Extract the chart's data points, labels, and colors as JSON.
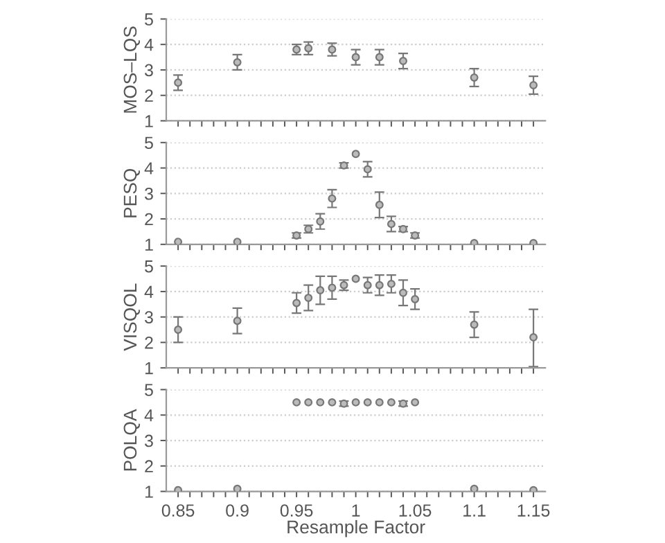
{
  "chart_data": [
    {
      "type": "scatter",
      "ylabel": "MOS–LQS",
      "x": [
        0.85,
        0.9,
        0.95,
        0.96,
        0.98,
        1.0,
        1.02,
        1.04,
        1.1,
        1.15
      ],
      "series": [
        {
          "color": "#777777",
          "values": [
            2.5,
            3.3,
            3.8,
            3.85,
            3.8,
            3.5,
            3.5,
            3.35,
            2.7,
            2.4
          ],
          "errors": [
            0.3,
            0.3,
            0.2,
            0.25,
            0.25,
            0.3,
            0.3,
            0.3,
            0.35,
            0.35
          ]
        }
      ],
      "xlim": [
        0.84,
        1.16
      ],
      "xticks": [
        {
          "value": 0.85,
          "label": null
        },
        {
          "value": 0.86,
          "label": null
        },
        {
          "value": 0.87,
          "label": null
        },
        {
          "value": 0.88,
          "label": null
        },
        {
          "value": 0.89,
          "label": null
        },
        {
          "value": 0.9,
          "label": null
        },
        {
          "value": 0.91,
          "label": null
        },
        {
          "value": 0.92,
          "label": null
        },
        {
          "value": 0.93,
          "label": null
        },
        {
          "value": 0.94,
          "label": null
        },
        {
          "value": 0.95,
          "label": null
        },
        {
          "value": 0.96,
          "label": null
        },
        {
          "value": 0.97,
          "label": null
        },
        {
          "value": 0.98,
          "label": null
        },
        {
          "value": 0.99,
          "label": null
        },
        {
          "value": 1.0,
          "label": null
        },
        {
          "value": 1.01,
          "label": null
        },
        {
          "value": 1.02,
          "label": null
        },
        {
          "value": 1.03,
          "label": null
        },
        {
          "value": 1.04,
          "label": null
        },
        {
          "value": 1.05,
          "label": null
        },
        {
          "value": 1.06,
          "label": null
        },
        {
          "value": 1.07,
          "label": null
        },
        {
          "value": 1.08,
          "label": null
        },
        {
          "value": 1.09,
          "label": null
        },
        {
          "value": 1.1,
          "label": null
        },
        {
          "value": 1.11,
          "label": null
        },
        {
          "value": 1.12,
          "label": null
        },
        {
          "value": 1.13,
          "label": null
        },
        {
          "value": 1.14,
          "label": null
        },
        {
          "value": 1.15,
          "label": null
        }
      ],
      "ylim": [
        1,
        5
      ],
      "yticks": [
        1,
        2,
        3,
        4,
        5
      ],
      "grid": "y",
      "marker": "circle",
      "tick_labels": "y"
    },
    {
      "type": "scatter",
      "ylabel": "PESQ",
      "x": [
        0.85,
        0.9,
        0.95,
        0.96,
        0.97,
        0.98,
        0.99,
        1.0,
        1.01,
        1.02,
        1.03,
        1.04,
        1.05,
        1.1,
        1.15
      ],
      "series": [
        {
          "color": "#777777",
          "values": [
            1.1,
            1.1,
            1.35,
            1.6,
            1.9,
            2.8,
            4.1,
            4.55,
            3.95,
            2.55,
            1.8,
            1.6,
            1.35,
            1.05,
            1.05
          ],
          "errors": [
            null,
            null,
            0.1,
            0.15,
            0.3,
            0.35,
            0.1,
            null,
            0.3,
            0.5,
            0.3,
            0.1,
            0.1,
            null,
            null
          ]
        }
      ],
      "xlim": [
        0.84,
        1.16
      ],
      "xticks": [
        {
          "value": 0.85,
          "label": null
        },
        {
          "value": 0.86,
          "label": null
        },
        {
          "value": 0.87,
          "label": null
        },
        {
          "value": 0.88,
          "label": null
        },
        {
          "value": 0.89,
          "label": null
        },
        {
          "value": 0.9,
          "label": null
        },
        {
          "value": 0.91,
          "label": null
        },
        {
          "value": 0.92,
          "label": null
        },
        {
          "value": 0.93,
          "label": null
        },
        {
          "value": 0.94,
          "label": null
        },
        {
          "value": 0.95,
          "label": null
        },
        {
          "value": 0.96,
          "label": null
        },
        {
          "value": 0.97,
          "label": null
        },
        {
          "value": 0.98,
          "label": null
        },
        {
          "value": 0.99,
          "label": null
        },
        {
          "value": 1.0,
          "label": null
        },
        {
          "value": 1.01,
          "label": null
        },
        {
          "value": 1.02,
          "label": null
        },
        {
          "value": 1.03,
          "label": null
        },
        {
          "value": 1.04,
          "label": null
        },
        {
          "value": 1.05,
          "label": null
        },
        {
          "value": 1.06,
          "label": null
        },
        {
          "value": 1.07,
          "label": null
        },
        {
          "value": 1.08,
          "label": null
        },
        {
          "value": 1.09,
          "label": null
        },
        {
          "value": 1.1,
          "label": null
        },
        {
          "value": 1.11,
          "label": null
        },
        {
          "value": 1.12,
          "label": null
        },
        {
          "value": 1.13,
          "label": null
        },
        {
          "value": 1.14,
          "label": null
        },
        {
          "value": 1.15,
          "label": null
        }
      ],
      "ylim": [
        1,
        5
      ],
      "yticks": [
        1,
        2,
        3,
        4,
        5
      ],
      "grid": "y",
      "marker": "circle",
      "tick_labels": "y"
    },
    {
      "type": "scatter",
      "ylabel": "VISQOL",
      "x": [
        0.85,
        0.9,
        0.95,
        0.96,
        0.97,
        0.98,
        0.99,
        1.0,
        1.01,
        1.02,
        1.03,
        1.04,
        1.05,
        1.1,
        1.15
      ],
      "series": [
        {
          "color": "#777777",
          "values": [
            2.5,
            2.85,
            3.55,
            3.75,
            4.05,
            4.15,
            4.25,
            4.5,
            4.25,
            4.25,
            4.3,
            3.95,
            3.7,
            2.7,
            2.2
          ],
          "errors": [
            0.5,
            0.5,
            0.4,
            0.5,
            0.55,
            0.45,
            0.2,
            null,
            0.3,
            0.4,
            0.35,
            0.5,
            0.4,
            0.5,
            [
              1.05,
              3.3
            ]
          ]
        }
      ],
      "xlim": [
        0.84,
        1.16
      ],
      "xticks": [
        {
          "value": 0.85,
          "label": null
        },
        {
          "value": 0.86,
          "label": null
        },
        {
          "value": 0.87,
          "label": null
        },
        {
          "value": 0.88,
          "label": null
        },
        {
          "value": 0.89,
          "label": null
        },
        {
          "value": 0.9,
          "label": null
        },
        {
          "value": 0.91,
          "label": null
        },
        {
          "value": 0.92,
          "label": null
        },
        {
          "value": 0.93,
          "label": null
        },
        {
          "value": 0.94,
          "label": null
        },
        {
          "value": 0.95,
          "label": null
        },
        {
          "value": 0.96,
          "label": null
        },
        {
          "value": 0.97,
          "label": null
        },
        {
          "value": 0.98,
          "label": null
        },
        {
          "value": 0.99,
          "label": null
        },
        {
          "value": 1.0,
          "label": null
        },
        {
          "value": 1.01,
          "label": null
        },
        {
          "value": 1.02,
          "label": null
        },
        {
          "value": 1.03,
          "label": null
        },
        {
          "value": 1.04,
          "label": null
        },
        {
          "value": 1.05,
          "label": null
        },
        {
          "value": 1.06,
          "label": null
        },
        {
          "value": 1.07,
          "label": null
        },
        {
          "value": 1.08,
          "label": null
        },
        {
          "value": 1.09,
          "label": null
        },
        {
          "value": 1.1,
          "label": null
        },
        {
          "value": 1.11,
          "label": null
        },
        {
          "value": 1.12,
          "label": null
        },
        {
          "value": 1.13,
          "label": null
        },
        {
          "value": 1.14,
          "label": null
        },
        {
          "value": 1.15,
          "label": null
        }
      ],
      "ylim": [
        1,
        5
      ],
      "yticks": [
        1,
        2,
        3,
        4,
        5
      ],
      "grid": "y",
      "marker": "circle",
      "tick_labels": "y"
    },
    {
      "type": "scatter",
      "ylabel": "POLQA",
      "xlabel": "Resample Factor",
      "x": [
        0.85,
        0.9,
        0.95,
        0.96,
        0.97,
        0.98,
        0.99,
        1.0,
        1.01,
        1.02,
        1.03,
        1.04,
        1.05,
        1.1,
        1.15
      ],
      "series": [
        {
          "color": "#777777",
          "values": [
            1.05,
            1.1,
            4.5,
            4.5,
            4.5,
            4.5,
            4.45,
            4.5,
            4.5,
            4.5,
            4.5,
            4.45,
            4.5,
            1.1,
            1.05
          ],
          "errors": [
            null,
            null,
            null,
            null,
            null,
            null,
            0.1,
            null,
            null,
            null,
            null,
            0.1,
            null,
            null,
            null
          ]
        }
      ],
      "xlim": [
        0.84,
        1.16
      ],
      "xticks": [
        0.85,
        {
          "value": 0.86,
          "label": null
        },
        {
          "value": 0.87,
          "label": null
        },
        {
          "value": 0.88,
          "label": null
        },
        {
          "value": 0.89,
          "label": null
        },
        0.9,
        {
          "value": 0.91,
          "label": null
        },
        {
          "value": 0.92,
          "label": null
        },
        {
          "value": 0.93,
          "label": null
        },
        {
          "value": 0.94,
          "label": null
        },
        0.95,
        {
          "value": 0.96,
          "label": null
        },
        {
          "value": 0.97,
          "label": null
        },
        {
          "value": 0.98,
          "label": null
        },
        {
          "value": 0.99,
          "label": null
        },
        {
          "value": 1,
          "label": "1"
        },
        {
          "value": 1.01,
          "label": null
        },
        {
          "value": 1.02,
          "label": null
        },
        {
          "value": 1.03,
          "label": null
        },
        {
          "value": 1.04,
          "label": null
        },
        1.05,
        {
          "value": 1.06,
          "label": null
        },
        {
          "value": 1.07,
          "label": null
        },
        {
          "value": 1.08,
          "label": null
        },
        {
          "value": 1.09,
          "label": null
        },
        1.1,
        {
          "value": 1.11,
          "label": null
        },
        {
          "value": 1.12,
          "label": null
        },
        {
          "value": 1.13,
          "label": null
        },
        {
          "value": 1.14,
          "label": null
        },
        1.15
      ],
      "ylim": [
        1,
        5
      ],
      "yticks": [
        1,
        2,
        3,
        4,
        5
      ],
      "grid": "y",
      "marker": "circle"
    }
  ]
}
